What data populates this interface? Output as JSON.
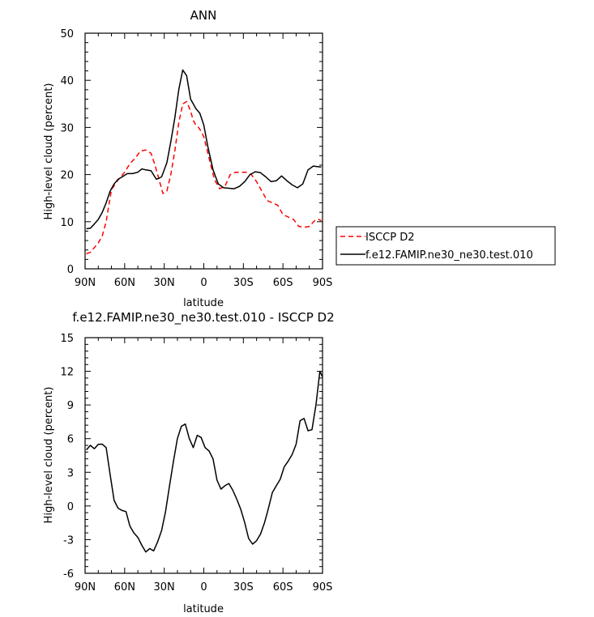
{
  "chart_data": [
    {
      "type": "line",
      "title": "ANN",
      "xlabel": "latitude",
      "ylabel": "High-level cloud (percent)",
      "xlim": [
        90,
        -90
      ],
      "ylim": [
        0,
        50
      ],
      "xtick_values": [
        90,
        60,
        30,
        0,
        -30,
        -60,
        -90
      ],
      "xtick_labels": [
        "90N",
        "60N",
        "30N",
        "0",
        "30S",
        "60S",
        "90S"
      ],
      "ytick_values": [
        0,
        10,
        20,
        30,
        40,
        50
      ],
      "ytick_labels": [
        "0",
        "10",
        "20",
        "30",
        "40",
        "50"
      ],
      "grid": false,
      "legend_position": "right",
      "series": [
        {
          "name": "ISCCP D2",
          "color": "#ff0000",
          "style": "dashed",
          "x": [
            89,
            86,
            83,
            80,
            77,
            74,
            72,
            70,
            66,
            63,
            60,
            56,
            52,
            48,
            44,
            40,
            37,
            34,
            31,
            28,
            25,
            22,
            19,
            16,
            13,
            10,
            8,
            6,
            4,
            2,
            0,
            -4,
            -8,
            -12,
            -16,
            -20,
            -24,
            -28,
            -32,
            -36,
            -40,
            -44,
            -48,
            -52,
            -56,
            -60,
            -64,
            -68,
            -72,
            -76,
            -80,
            -84,
            -87,
            -89
          ],
          "y": [
            3.2,
            3.5,
            4.5,
            5.5,
            7.0,
            10.0,
            13.5,
            16.8,
            18.5,
            19.5,
            20.5,
            22.3,
            23.5,
            25.0,
            25.2,
            24.5,
            22.0,
            19.0,
            16.0,
            16.5,
            20.0,
            25.0,
            31.0,
            35.0,
            35.5,
            33.5,
            31.5,
            30.5,
            30.0,
            29.2,
            28.0,
            23.5,
            19.0,
            17.0,
            17.5,
            20.0,
            20.5,
            20.5,
            20.5,
            20.0,
            18.5,
            16.5,
            14.5,
            14.0,
            13.5,
            11.5,
            11.0,
            10.5,
            9.0,
            8.8,
            9.0,
            10.2,
            10.5,
            10.2
          ]
        },
        {
          "name": "f.e12.FAMIP.ne30_ne30.test.010",
          "color": "#000000",
          "style": "solid",
          "x": [
            89,
            86,
            83,
            80,
            77,
            74,
            71,
            68,
            65,
            62,
            58,
            54,
            50,
            47,
            44,
            40,
            36,
            32,
            28,
            25,
            22,
            19,
            16,
            13,
            10,
            8,
            6,
            3,
            0,
            -3,
            -7,
            -11,
            -15,
            -19,
            -23,
            -27,
            -31,
            -35,
            -39,
            -43,
            -47,
            -51,
            -55,
            -59,
            -63,
            -67,
            -71,
            -75,
            -79,
            -83,
            -86,
            -89
          ],
          "y": [
            8.5,
            8.6,
            9.5,
            10.5,
            12.0,
            14.0,
            16.5,
            18.0,
            19.0,
            19.5,
            20.2,
            20.2,
            20.5,
            21.2,
            21.0,
            20.8,
            19.0,
            19.5,
            22.5,
            27.0,
            32.0,
            38.0,
            42.2,
            41.0,
            36.0,
            35.0,
            34.0,
            33.0,
            30.5,
            26.0,
            21.0,
            18.0,
            17.2,
            17.1,
            17.0,
            17.5,
            18.5,
            20.0,
            20.6,
            20.4,
            19.5,
            18.5,
            18.7,
            19.7,
            18.7,
            17.8,
            17.2,
            18.0,
            21.0,
            21.8,
            21.7,
            21.6
          ]
        }
      ]
    },
    {
      "type": "line",
      "title": "f.e12.FAMIP.ne30_ne30.test.010 - ISCCP D2",
      "xlabel": "latitude",
      "ylabel": "High-level cloud (percent)",
      "xlim": [
        90,
        -90
      ],
      "ylim": [
        -6,
        15
      ],
      "xtick_values": [
        90,
        60,
        30,
        0,
        -30,
        -60,
        -90
      ],
      "xtick_labels": [
        "90N",
        "60N",
        "30N",
        "0",
        "30S",
        "60S",
        "90S"
      ],
      "ytick_values": [
        -6,
        -3,
        0,
        3,
        6,
        9,
        12,
        15
      ],
      "ytick_labels": [
        "-6",
        "-3",
        "0",
        "3",
        "6",
        "9",
        "12",
        "15"
      ],
      "grid": false,
      "series": [
        {
          "color": "#000000",
          "style": "solid",
          "x": [
            89,
            86,
            83,
            80,
            77,
            74,
            71,
            68,
            65,
            62,
            59,
            56,
            53,
            50,
            47,
            44,
            41,
            38,
            35,
            32,
            29,
            26,
            23,
            20,
            17,
            14,
            11,
            8,
            5,
            2,
            -1,
            -4,
            -7,
            -10,
            -13,
            -16,
            -19,
            -22,
            -25,
            -28,
            -31,
            -34,
            -37,
            -40,
            -43,
            -46,
            -49,
            -52,
            -55,
            -58,
            -61,
            -64,
            -67,
            -70,
            -73,
            -76,
            -79,
            -82,
            -85,
            -88,
            -90
          ],
          "y": [
            5.0,
            5.4,
            5.1,
            5.5,
            5.5,
            5.2,
            2.8,
            0.5,
            -0.2,
            -0.4,
            -0.5,
            -1.8,
            -2.4,
            -2.8,
            -3.5,
            -4.1,
            -3.8,
            -4.0,
            -3.2,
            -2.2,
            -0.5,
            1.8,
            4.0,
            6.0,
            7.1,
            7.3,
            6.0,
            5.2,
            6.3,
            6.1,
            5.2,
            4.9,
            4.2,
            2.3,
            1.5,
            1.8,
            2.0,
            1.4,
            0.6,
            -0.3,
            -1.5,
            -2.9,
            -3.4,
            -3.1,
            -2.5,
            -1.5,
            -0.2,
            1.2,
            1.8,
            2.4,
            3.5,
            4.0,
            4.6,
            5.5,
            7.6,
            7.8,
            6.7,
            6.8,
            9.0,
            12.0,
            11.5
          ]
        }
      ]
    }
  ]
}
